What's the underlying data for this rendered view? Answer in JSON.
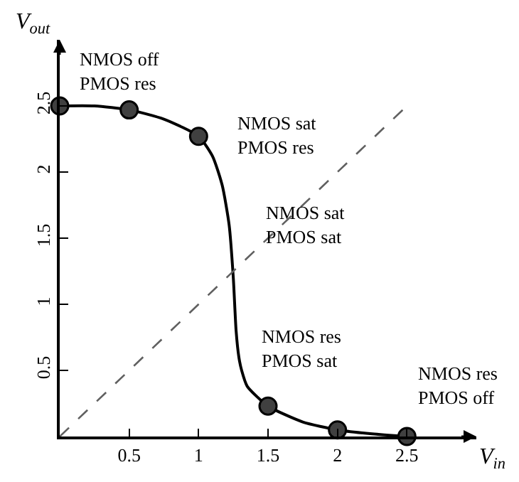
{
  "chart_data": {
    "type": "line",
    "xlabel": "V$_{in}$",
    "ylabel": "V$_{out}$",
    "xlim": [
      0,
      3
    ],
    "ylim": [
      0,
      3
    ],
    "xticks": [
      0.5,
      1,
      1.5,
      2,
      2.5
    ],
    "yticks": [
      0.5,
      1,
      1.5,
      2,
      2.5
    ],
    "series": [
      {
        "color": "#000000",
        "marker": "none",
        "line_style": "solid",
        "x": [
          0,
          0.25,
          0.5,
          0.75,
          1,
          1.1,
          1.17,
          1.22,
          1.25,
          1.27,
          1.29,
          1.31,
          1.35,
          1.5,
          1.75,
          2,
          2.25,
          2.5
        ],
        "values": [
          2.5,
          2.5,
          2.47,
          2.4,
          2.27,
          2.12,
          1.9,
          1.6,
          1.2,
          0.8,
          0.6,
          0.5,
          0.38,
          0.23,
          0.11,
          0.05,
          0.02,
          0.0
        ]
      },
      {
        "type": "scatter",
        "color": "#404040",
        "marker": "circle",
        "x": [
          0,
          0.5,
          1,
          1.5,
          2,
          2.5
        ],
        "values": [
          2.5,
          2.47,
          2.27,
          0.23,
          0.05,
          0.0
        ]
      },
      {
        "type": "line",
        "color": "#606060",
        "marker": "none",
        "line_style": "dashed",
        "x": [
          0,
          2.5
        ],
        "values": [
          0,
          2.5
        ]
      }
    ],
    "annotations": [
      "NMOS off\nPMOS res",
      "NMOS sat\nPMOS res",
      "NMOS sat\nPMOS sat",
      "NMOS res\nPMOS sat",
      "NMOS res\nPMOS off"
    ]
  }
}
